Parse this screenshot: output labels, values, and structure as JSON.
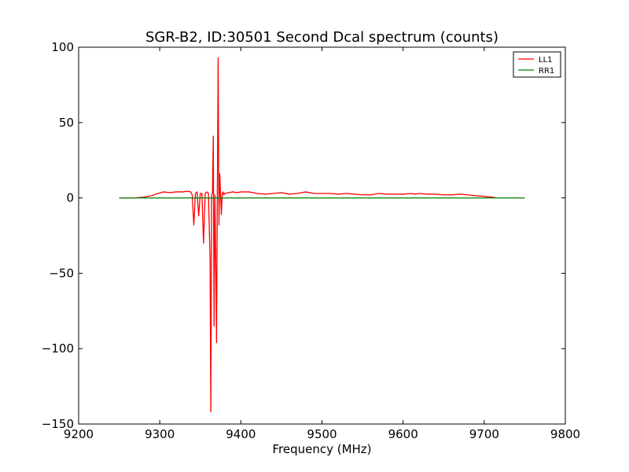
{
  "chart_data": {
    "type": "line",
    "title": "SGR-B2, ID:30501 Second Dcal spectrum (counts)",
    "xlabel": "Frequency (MHz)",
    "ylabel": "",
    "xlim": [
      9200,
      9800
    ],
    "ylim": [
      -150,
      100
    ],
    "xticks": [
      9200,
      9300,
      9400,
      9500,
      9600,
      9700,
      9800
    ],
    "yticks": [
      -150,
      -100,
      -50,
      0,
      50,
      100
    ],
    "xtick_labels": [
      "9200",
      "9300",
      "9400",
      "9500",
      "9600",
      "9700",
      "9800"
    ],
    "ytick_labels": [
      "−150",
      "−100",
      "−50",
      "0",
      "50",
      "100"
    ],
    "grid": false,
    "legend_position": "top-right",
    "series": [
      {
        "name": "LL1",
        "color": "#ff0000",
        "x": [
          9250,
          9268,
          9280,
          9290,
          9298,
          9305,
          9312,
          9320,
          9328,
          9335,
          9338,
          9340,
          9342,
          9344,
          9346,
          9348,
          9350,
          9352,
          9354,
          9356,
          9358,
          9360,
          9362,
          9363,
          9364,
          9365,
          9366,
          9367,
          9368,
          9369,
          9370,
          9371,
          9372,
          9373,
          9374,
          9375,
          9376,
          9377,
          9378,
          9379,
          9380,
          9385,
          9390,
          9395,
          9400,
          9410,
          9420,
          9430,
          9440,
          9450,
          9460,
          9470,
          9480,
          9490,
          9500,
          9510,
          9520,
          9530,
          9540,
          9550,
          9560,
          9570,
          9580,
          9590,
          9600,
          9610,
          9615,
          9620,
          9630,
          9640,
          9650,
          9660,
          9670,
          9680,
          9690,
          9700,
          9710,
          9715
        ],
        "values": [
          0,
          0,
          0.5,
          1.5,
          3,
          4,
          3.5,
          4,
          4,
          4.5,
          4,
          2,
          -18,
          3,
          4,
          -12,
          3,
          3,
          -30,
          3,
          4,
          3,
          -40,
          -142,
          2,
          3,
          41,
          -85,
          2,
          -40,
          -96,
          3,
          93,
          -18,
          16,
          2,
          -11,
          3,
          4,
          2,
          3,
          3.5,
          4,
          3.5,
          4,
          4,
          3,
          2.5,
          3,
          3.5,
          2.5,
          3,
          4,
          3,
          3,
          3,
          2.5,
          3,
          2.5,
          2,
          2,
          3,
          2.5,
          2.5,
          2.5,
          3,
          2.5,
          3,
          2.5,
          2.5,
          2,
          2,
          2.5,
          2,
          1.5,
          1,
          0.5,
          0
        ]
      },
      {
        "name": "RR1",
        "color": "#008000",
        "x": [
          9250,
          9750
        ],
        "values": [
          0,
          0
        ]
      }
    ]
  }
}
